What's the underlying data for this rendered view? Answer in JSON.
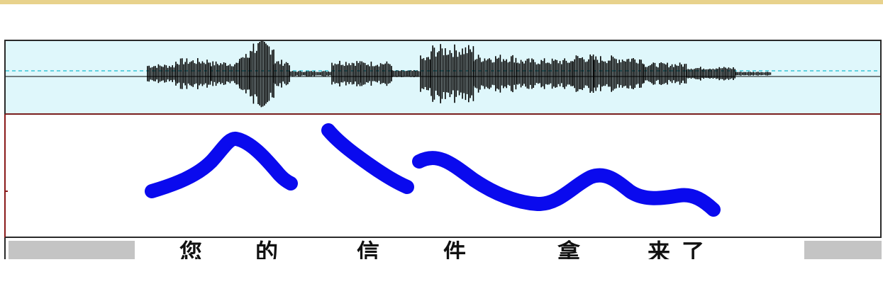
{
  "syllables": [
    "您",
    "的",
    "信",
    "件",
    "拿",
    "来",
    "了"
  ],
  "colors": {
    "waveform": "#000000",
    "pitch_curve": "#0a0aee",
    "panel_background": "#dff7fb",
    "baseline": "#39c6d8",
    "scrollbar": "#c4c4c4"
  }
}
